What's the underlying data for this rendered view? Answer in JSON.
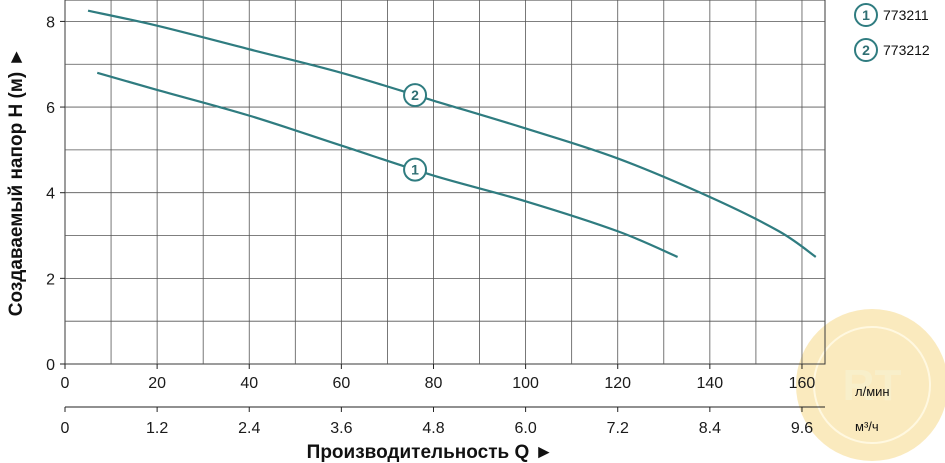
{
  "chart_data": {
    "type": "line",
    "ylabel": "Создаваемый напор H (м) ►",
    "xlabel": "Производительность Q ►",
    "x_unit_primary": "л/мин",
    "x_unit_secondary": "м³/ч",
    "xlim": [
      0,
      165
    ],
    "ylim": [
      0,
      8.5
    ],
    "x_ticks": [
      0,
      20,
      40,
      60,
      80,
      100,
      120,
      140,
      160
    ],
    "x_tick_labels": [
      "0",
      "20",
      "40",
      "60",
      "80",
      "100",
      "120",
      "140",
      "160"
    ],
    "x2_ticks": [
      0,
      20,
      40,
      60,
      80,
      100,
      120,
      140,
      160
    ],
    "x2_tick_labels": [
      "0",
      "1.2",
      "2.4",
      "3.6",
      "4.8",
      "6.0",
      "7.2",
      "8.4",
      "9.6"
    ],
    "y_ticks": [
      0,
      2,
      4,
      6,
      8
    ],
    "y_tick_labels": [
      "0",
      "2",
      "4",
      "6",
      "8"
    ],
    "grid": true,
    "legend_position": "right",
    "series": [
      {
        "name": "773211",
        "marker": "1",
        "color": "#2f7c80",
        "x": [
          7,
          20,
          40,
          60,
          80,
          100,
          120,
          133
        ],
        "y": [
          6.8,
          6.4,
          5.8,
          5.1,
          4.4,
          3.8,
          3.1,
          2.5
        ],
        "label_at": 76
      },
      {
        "name": "773212",
        "marker": "2",
        "color": "#2f7c80",
        "x": [
          5,
          20,
          40,
          60,
          80,
          100,
          120,
          140,
          155,
          163
        ],
        "y": [
          8.25,
          7.9,
          7.35,
          6.8,
          6.15,
          5.5,
          4.8,
          3.9,
          3.1,
          2.5
        ],
        "label_at": 76
      }
    ]
  },
  "legend": {
    "items": [
      {
        "marker": "1",
        "label": "773211"
      },
      {
        "marker": "2",
        "label": "773212"
      }
    ]
  },
  "watermark": {
    "ring_text": "WWW.RT.CO.UA",
    "logo": "RT",
    "bottom_text": "Интернет магазин"
  }
}
